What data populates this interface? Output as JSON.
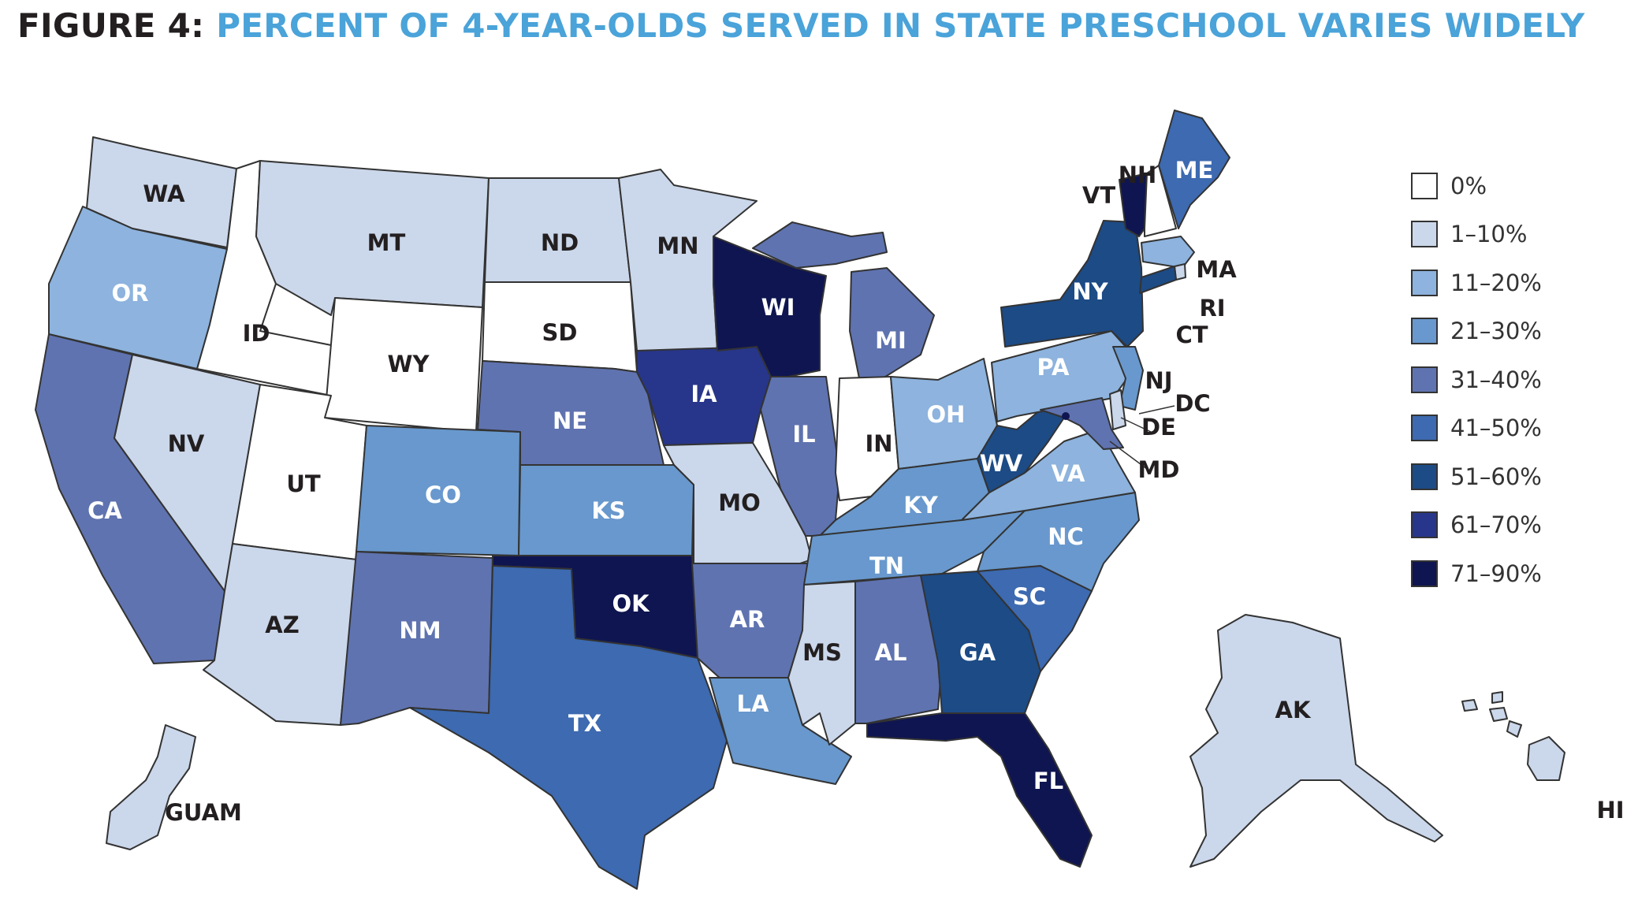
{
  "title": {
    "prefix": "FIGURE 4:",
    "text": "PERCENT OF 4-YEAR-OLDS SERVED IN STATE PRESCHOOL VARIES WIDELY"
  },
  "colors": {
    "title_prefix": "#231f20",
    "title_text": "#4aa3d9",
    "outline": "#333333"
  },
  "legend": [
    {
      "label": "0%",
      "color": "#ffffff"
    },
    {
      "label": "1–10%",
      "color": "#cbd7ea"
    },
    {
      "label": "11–20%",
      "color": "#8db3de"
    },
    {
      "label": "21–30%",
      "color": "#6898cd"
    },
    {
      "label": "31–40%",
      "color": "#5f73b0"
    },
    {
      "label": "41–50%",
      "color": "#3d6ab0"
    },
    {
      "label": "51–60%",
      "color": "#1c4b86"
    },
    {
      "label": "61–70%",
      "color": "#27368a"
    },
    {
      "label": "71–90%",
      "color": "#0f1550"
    }
  ],
  "states": [
    {
      "id": "WA",
      "label": "WA",
      "bin": "1–10%"
    },
    {
      "id": "OR",
      "label": "OR",
      "bin": "11–20%"
    },
    {
      "id": "CA",
      "label": "CA",
      "bin": "31–40%"
    },
    {
      "id": "ID",
      "label": "ID",
      "bin": "0%"
    },
    {
      "id": "NV",
      "label": "NV",
      "bin": "1–10%"
    },
    {
      "id": "MT",
      "label": "MT",
      "bin": "1–10%"
    },
    {
      "id": "WY",
      "label": "WY",
      "bin": "0%"
    },
    {
      "id": "UT",
      "label": "UT",
      "bin": "0%"
    },
    {
      "id": "AZ",
      "label": "AZ",
      "bin": "1–10%"
    },
    {
      "id": "CO",
      "label": "CO",
      "bin": "21–30%"
    },
    {
      "id": "NM",
      "label": "NM",
      "bin": "31–40%"
    },
    {
      "id": "ND",
      "label": "ND",
      "bin": "1–10%"
    },
    {
      "id": "SD",
      "label": "SD",
      "bin": "0%"
    },
    {
      "id": "NE",
      "label": "NE",
      "bin": "31–40%"
    },
    {
      "id": "KS",
      "label": "KS",
      "bin": "21–30%"
    },
    {
      "id": "OK",
      "label": "OK",
      "bin": "71–90%"
    },
    {
      "id": "TX",
      "label": "TX",
      "bin": "41–50%"
    },
    {
      "id": "MN",
      "label": "MN",
      "bin": "1–10%"
    },
    {
      "id": "IA",
      "label": "IA",
      "bin": "61–70%"
    },
    {
      "id": "MO",
      "label": "MO",
      "bin": "1–10%"
    },
    {
      "id": "AR",
      "label": "AR",
      "bin": "31–40%"
    },
    {
      "id": "LA",
      "label": "LA",
      "bin": "21–30%"
    },
    {
      "id": "WI",
      "label": "WI",
      "bin": "71–90%"
    },
    {
      "id": "IL",
      "label": "IL",
      "bin": "31–40%"
    },
    {
      "id": "MI",
      "label": "MI",
      "bin": "31–40%"
    },
    {
      "id": "IN",
      "label": "IN",
      "bin": "0%"
    },
    {
      "id": "OH",
      "label": "OH",
      "bin": "11–20%"
    },
    {
      "id": "KY",
      "label": "KY",
      "bin": "21–30%"
    },
    {
      "id": "TN",
      "label": "TN",
      "bin": "21–30%"
    },
    {
      "id": "MS",
      "label": "MS",
      "bin": "1–10%"
    },
    {
      "id": "AL",
      "label": "AL",
      "bin": "31–40%"
    },
    {
      "id": "GA",
      "label": "GA",
      "bin": "51–60%"
    },
    {
      "id": "FL",
      "label": "FL",
      "bin": "71–90%"
    },
    {
      "id": "SC",
      "label": "SC",
      "bin": "41–50%"
    },
    {
      "id": "NC",
      "label": "NC",
      "bin": "21–30%"
    },
    {
      "id": "VA",
      "label": "VA",
      "bin": "11–20%"
    },
    {
      "id": "WV",
      "label": "WV",
      "bin": "51–60%"
    },
    {
      "id": "PA",
      "label": "PA",
      "bin": "11–20%"
    },
    {
      "id": "NY",
      "label": "NY",
      "bin": "51–60%"
    },
    {
      "id": "VT",
      "label": "VT",
      "bin": "71–90%"
    },
    {
      "id": "NH",
      "label": "NH",
      "bin": "0%"
    },
    {
      "id": "ME",
      "label": "ME",
      "bin": "41–50%"
    },
    {
      "id": "MA",
      "label": "MA",
      "bin": "11–20%"
    },
    {
      "id": "RI",
      "label": "RI",
      "bin": "1–10%"
    },
    {
      "id": "CT",
      "label": "CT",
      "bin": "51–60%"
    },
    {
      "id": "NJ",
      "label": "NJ",
      "bin": "21–30%"
    },
    {
      "id": "DE",
      "label": "DE",
      "bin": "1–10%"
    },
    {
      "id": "MD",
      "label": "MD",
      "bin": "31–40%"
    },
    {
      "id": "DC",
      "label": "DC",
      "bin": "71–90%"
    },
    {
      "id": "AK",
      "label": "AK",
      "bin": "1–10%"
    },
    {
      "id": "HI",
      "label": "HI",
      "bin": "1–10%"
    },
    {
      "id": "GUAM",
      "label": "GUAM",
      "bin": "1–10%"
    }
  ]
}
